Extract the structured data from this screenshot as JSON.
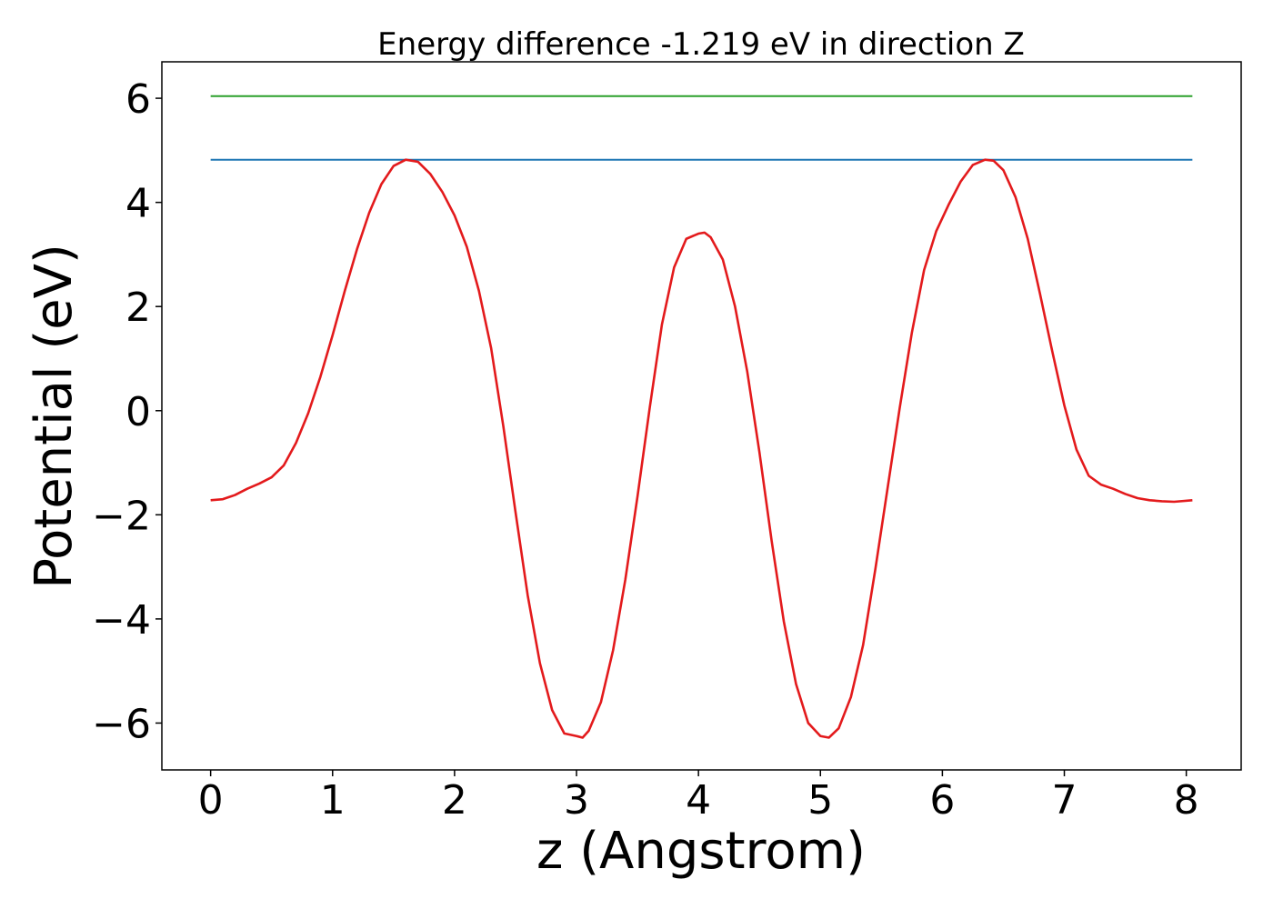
{
  "chart_data": {
    "type": "line",
    "title": "Energy difference -1.219 eV in direction Z",
    "xlabel": "z (Angstrom)",
    "ylabel": "Potential (eV)",
    "xlim": [
      -0.4,
      8.45
    ],
    "ylim": [
      -6.9,
      6.7
    ],
    "xticks": [
      0,
      1,
      2,
      3,
      4,
      5,
      6,
      7,
      8
    ],
    "xtick_labels": [
      "0",
      "1",
      "2",
      "3",
      "4",
      "5",
      "6",
      "7",
      "8"
    ],
    "yticks": [
      -6,
      -4,
      -2,
      0,
      2,
      4,
      6
    ],
    "ytick_labels": [
      "−6",
      "−4",
      "−2",
      "0",
      "2",
      "4",
      "6"
    ],
    "grid": false,
    "series": [
      {
        "color": "#2ca02c",
        "x": [
          0,
          8.05
        ],
        "y": [
          6.04,
          6.04
        ]
      },
      {
        "color": "#1f77b4",
        "x": [
          0,
          8.05
        ],
        "y": [
          4.82,
          4.82
        ]
      },
      {
        "color": "#e31a1c",
        "x": [
          0,
          0.1,
          0.2,
          0.3,
          0.4,
          0.5,
          0.6,
          0.7,
          0.8,
          0.9,
          1.0,
          1.1,
          1.2,
          1.3,
          1.4,
          1.5,
          1.6,
          1.7,
          1.8,
          1.9,
          2.0,
          2.1,
          2.2,
          2.3,
          2.4,
          2.5,
          2.6,
          2.7,
          2.8,
          2.9,
          3.0,
          3.05,
          3.1,
          3.2,
          3.3,
          3.4,
          3.5,
          3.6,
          3.7,
          3.8,
          3.9,
          4.0,
          4.05,
          4.1,
          4.2,
          4.3,
          4.4,
          4.5,
          4.6,
          4.7,
          4.8,
          4.9,
          5.0,
          5.07,
          5.15,
          5.25,
          5.35,
          5.45,
          5.55,
          5.65,
          5.75,
          5.85,
          5.95,
          6.05,
          6.15,
          6.25,
          6.35,
          6.42,
          6.5,
          6.6,
          6.7,
          6.8,
          6.9,
          7.0,
          7.1,
          7.2,
          7.3,
          7.4,
          7.5,
          7.6,
          7.7,
          7.8,
          7.9,
          8.05
        ],
        "y": [
          -1.72,
          -1.7,
          -1.62,
          -1.5,
          -1.4,
          -1.28,
          -1.05,
          -0.62,
          -0.05,
          0.65,
          1.45,
          2.3,
          3.1,
          3.8,
          4.35,
          4.7,
          4.82,
          4.78,
          4.55,
          4.2,
          3.75,
          3.15,
          2.3,
          1.2,
          -0.3,
          -1.95,
          -3.55,
          -4.85,
          -5.75,
          -6.2,
          -6.25,
          -6.28,
          -6.15,
          -5.6,
          -4.6,
          -3.25,
          -1.65,
          0.05,
          1.65,
          2.75,
          3.3,
          3.4,
          3.42,
          3.33,
          2.9,
          2.0,
          0.75,
          -0.8,
          -2.5,
          -4.05,
          -5.25,
          -6.0,
          -6.25,
          -6.28,
          -6.1,
          -5.5,
          -4.5,
          -3.05,
          -1.5,
          0.05,
          1.5,
          2.7,
          3.45,
          3.95,
          4.4,
          4.72,
          4.82,
          4.8,
          4.62,
          4.1,
          3.3,
          2.25,
          1.15,
          0.1,
          -0.75,
          -1.25,
          -1.42,
          -1.5,
          -1.6,
          -1.68,
          -1.72,
          -1.74,
          -1.75,
          -1.72
        ]
      }
    ]
  }
}
